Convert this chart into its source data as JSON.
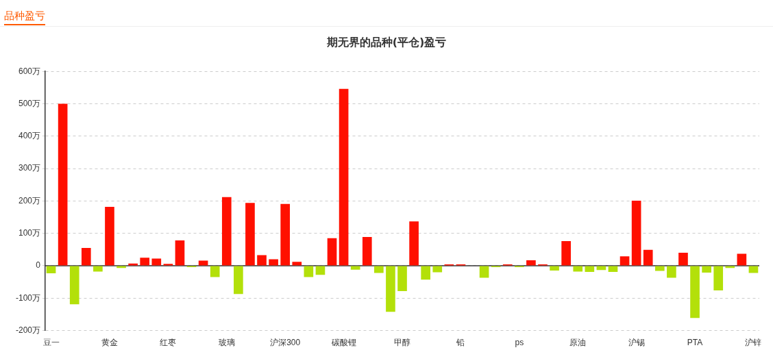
{
  "chart_data": {
    "type": "bar",
    "title": "期无界的品种(平仓)盈亏",
    "annotations": [
      "品种盈亏"
    ],
    "categories": [
      "豆一",
      null,
      null,
      null,
      null,
      "黄金",
      null,
      null,
      null,
      null,
      "红枣",
      null,
      null,
      null,
      null,
      "玻璃",
      null,
      null,
      null,
      null,
      "沪深300",
      null,
      null,
      null,
      null,
      "碳酸锂",
      null,
      null,
      null,
      null,
      "甲醇",
      null,
      null,
      null,
      null,
      "铅",
      null,
      null,
      null,
      null,
      "ps",
      null,
      null,
      null,
      null,
      "原油",
      null,
      null,
      null,
      null,
      "沪锡",
      null,
      null,
      null,
      null,
      "PTA",
      null,
      null,
      null,
      null,
      "沪锌"
    ],
    "values": [
      -23,
      500,
      -119,
      55,
      -18,
      182,
      -7,
      7,
      25,
      22,
      6,
      78,
      -4,
      16,
      -35,
      212,
      -87,
      194,
      33,
      20,
      191,
      12,
      -35,
      -28,
      85,
      546,
      -12,
      89,
      -22,
      -142,
      -78,
      137,
      -43,
      -20,
      1,
      4,
      null,
      -37,
      -2,
      1,
      -4,
      17,
      2,
      -15,
      76,
      -18,
      -19,
      -13,
      -19,
      29,
      201,
      49,
      -16,
      -37,
      40,
      -161,
      -21,
      -76,
      -7,
      37,
      -22
    ],
    "colors": [
      "#b3e00a",
      "#ff1000",
      "#b3e00a",
      "#ff1000",
      "#b3e00a",
      "#ff1000",
      "#b3e00a",
      "#ff1000",
      "#ff1000",
      "#ff1000",
      "#ff1000",
      "#ff1000",
      "#b3e00a",
      "#ff1000",
      "#b3e00a",
      "#ff1000",
      "#b3e00a",
      "#ff1000",
      "#ff1000",
      "#ff1000",
      "#ff1000",
      "#ff1000",
      "#b3e00a",
      "#b3e00a",
      "#ff1000",
      "#ff1000",
      "#b3e00a",
      "#ff1000",
      "#b3e00a",
      "#b3e00a",
      "#b3e00a",
      "#ff1000",
      "#b3e00a",
      "#b3e00a",
      "#ff1000",
      "#ff1000",
      "#ff1000",
      "#b3e00a",
      "#b3e00a",
      "#ff1000",
      "#b3e00a",
      "#ff1000",
      "#ff1000",
      "#b3e00a",
      "#ff1000",
      "#b3e00a",
      "#b3e00a",
      "#b3e00a",
      "#b3e00a",
      "#ff1000",
      "#ff1000",
      "#ff1000",
      "#b3e00a",
      "#b3e00a",
      "#ff1000",
      "#b3e00a",
      "#b3e00a",
      "#b3e00a",
      "#b3e00a",
      "#ff1000",
      "#b3e00a"
    ],
    "ylim": [
      -200,
      600
    ],
    "yticks": [
      {
        "value": -200,
        "label": "-200万"
      },
      {
        "value": -100,
        "label": "-100万"
      },
      {
        "value": 0,
        "label": "0"
      },
      {
        "value": 100,
        "label": "100万"
      },
      {
        "value": 200,
        "label": "200万"
      },
      {
        "value": 300,
        "label": "300万"
      },
      {
        "value": 400,
        "label": "400万"
      },
      {
        "value": 500,
        "label": "500万"
      },
      {
        "value": 600,
        "label": "600万"
      }
    ],
    "grid": "y"
  }
}
